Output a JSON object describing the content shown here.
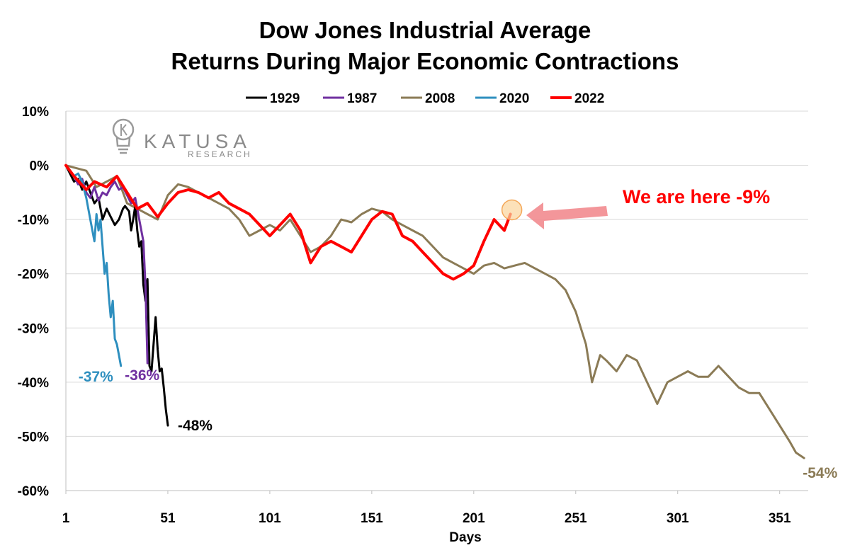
{
  "logo": {
    "name": "KATUSA",
    "sub": "RESEARCH"
  },
  "chart_data": {
    "type": "line",
    "title": [
      "Dow Jones Industrial Average",
      "Returns During Major Economic Contractions"
    ],
    "xlabel": "Days",
    "ylabel": "",
    "xlim": [
      1,
      365
    ],
    "ylim": [
      -60,
      10
    ],
    "x_ticks": [
      1,
      51,
      101,
      151,
      201,
      251,
      301,
      351
    ],
    "y_ticks": [
      10,
      0,
      -10,
      -20,
      -30,
      -40,
      -50,
      -60
    ],
    "y_tick_labels": [
      "10%",
      "0%",
      "-10%",
      "-20%",
      "-30%",
      "-40%",
      "-50%",
      "-60%"
    ],
    "grid": "horizontal",
    "legend_position": "top",
    "series": [
      {
        "name": "1929",
        "color": "#000000",
        "points": [
          [
            1,
            0
          ],
          [
            3,
            -1.5
          ],
          [
            5,
            -3
          ],
          [
            7,
            -2.5
          ],
          [
            9,
            -4.5
          ],
          [
            11,
            -3
          ],
          [
            13,
            -5
          ],
          [
            15,
            -7
          ],
          [
            17,
            -6
          ],
          [
            19,
            -10
          ],
          [
            21,
            -8
          ],
          [
            23,
            -9.5
          ],
          [
            25,
            -11
          ],
          [
            27,
            -10
          ],
          [
            29,
            -8
          ],
          [
            30,
            -7.5
          ],
          [
            32,
            -8.5
          ],
          [
            33,
            -12
          ],
          [
            34,
            -10
          ],
          [
            35,
            -7.5
          ],
          [
            36,
            -12
          ],
          [
            37,
            -15
          ],
          [
            38,
            -14
          ],
          [
            39,
            -22
          ],
          [
            40,
            -25
          ],
          [
            41,
            -21
          ],
          [
            42,
            -37
          ],
          [
            43,
            -38
          ],
          [
            44,
            -33
          ],
          [
            45,
            -28
          ],
          [
            46,
            -34
          ],
          [
            47,
            -38
          ],
          [
            48,
            -37.5
          ],
          [
            49,
            -41
          ],
          [
            50,
            -45
          ],
          [
            51,
            -48
          ]
        ],
        "end_label": "-48%"
      },
      {
        "name": "1987",
        "color": "#7030a0",
        "points": [
          [
            1,
            0
          ],
          [
            3,
            -1
          ],
          [
            5,
            -2
          ],
          [
            7,
            -3.5
          ],
          [
            9,
            -2.5
          ],
          [
            11,
            -5
          ],
          [
            13,
            -6
          ],
          [
            15,
            -4
          ],
          [
            17,
            -6.5
          ],
          [
            19,
            -5
          ],
          [
            21,
            -5.5
          ],
          [
            23,
            -4
          ],
          [
            25,
            -3
          ],
          [
            27,
            -4.5
          ],
          [
            29,
            -4
          ],
          [
            31,
            -5.5
          ],
          [
            33,
            -7
          ],
          [
            35,
            -6
          ],
          [
            36,
            -8
          ],
          [
            37,
            -10
          ],
          [
            38,
            -12
          ],
          [
            39,
            -14
          ],
          [
            40,
            -22
          ],
          [
            41,
            -36.5
          ]
        ],
        "end_label": "-36%"
      },
      {
        "name": "2008",
        "color": "#8b7b56",
        "points": [
          [
            1,
            0
          ],
          [
            6,
            -0.5
          ],
          [
            11,
            -1
          ],
          [
            16,
            -4
          ],
          [
            21,
            -3
          ],
          [
            26,
            -2
          ],
          [
            31,
            -7
          ],
          [
            36,
            -8
          ],
          [
            41,
            -9
          ],
          [
            46,
            -10
          ],
          [
            51,
            -5.5
          ],
          [
            56,
            -3.5
          ],
          [
            61,
            -4
          ],
          [
            66,
            -5
          ],
          [
            71,
            -6
          ],
          [
            76,
            -7
          ],
          [
            81,
            -8
          ],
          [
            86,
            -10
          ],
          [
            91,
            -13
          ],
          [
            96,
            -12
          ],
          [
            101,
            -11
          ],
          [
            106,
            -12
          ],
          [
            111,
            -10
          ],
          [
            116,
            -13
          ],
          [
            121,
            -16
          ],
          [
            126,
            -15
          ],
          [
            131,
            -13
          ],
          [
            136,
            -10
          ],
          [
            141,
            -10.5
          ],
          [
            146,
            -9
          ],
          [
            151,
            -8
          ],
          [
            156,
            -8.5
          ],
          [
            161,
            -10
          ],
          [
            166,
            -11
          ],
          [
            171,
            -12
          ],
          [
            176,
            -13
          ],
          [
            181,
            -15
          ],
          [
            186,
            -17
          ],
          [
            191,
            -18
          ],
          [
            196,
            -19
          ],
          [
            201,
            -20
          ],
          [
            206,
            -18.5
          ],
          [
            211,
            -18
          ],
          [
            216,
            -19
          ],
          [
            221,
            -18.5
          ],
          [
            226,
            -18
          ],
          [
            231,
            -19
          ],
          [
            236,
            -20
          ],
          [
            241,
            -21
          ],
          [
            246,
            -23
          ],
          [
            251,
            -27
          ],
          [
            256,
            -33
          ],
          [
            259,
            -40
          ],
          [
            263,
            -35
          ],
          [
            266,
            -36
          ],
          [
            271,
            -38
          ],
          [
            276,
            -35
          ],
          [
            281,
            -36
          ],
          [
            286,
            -40
          ],
          [
            291,
            -44
          ],
          [
            296,
            -40
          ],
          [
            301,
            -39
          ],
          [
            306,
            -38
          ],
          [
            311,
            -39
          ],
          [
            316,
            -39
          ],
          [
            321,
            -37
          ],
          [
            326,
            -39
          ],
          [
            331,
            -41
          ],
          [
            336,
            -42
          ],
          [
            341,
            -42
          ],
          [
            346,
            -45
          ],
          [
            351,
            -48
          ],
          [
            356,
            -51
          ],
          [
            359,
            -53
          ],
          [
            363,
            -54
          ]
        ],
        "end_label": "-54%"
      },
      {
        "name": "2020",
        "color": "#2e8fbf",
        "points": [
          [
            1,
            0
          ],
          [
            3,
            -1
          ],
          [
            5,
            -2
          ],
          [
            7,
            -1.5
          ],
          [
            9,
            -3
          ],
          [
            11,
            -6
          ],
          [
            13,
            -10
          ],
          [
            15,
            -14
          ],
          [
            16,
            -9
          ],
          [
            17,
            -12
          ],
          [
            18,
            -10
          ],
          [
            19,
            -15
          ],
          [
            20,
            -20
          ],
          [
            21,
            -18
          ],
          [
            22,
            -24
          ],
          [
            23,
            -28
          ],
          [
            24,
            -25
          ],
          [
            25,
            -32
          ],
          [
            26,
            -33
          ],
          [
            27,
            -35
          ],
          [
            28,
            -37
          ]
        ],
        "end_label": "-37%"
      },
      {
        "name": "2022",
        "color": "#ff0000",
        "points": [
          [
            1,
            0
          ],
          [
            5,
            -2
          ],
          [
            11,
            -4.5
          ],
          [
            15,
            -3
          ],
          [
            21,
            -4
          ],
          [
            26,
            -2
          ],
          [
            31,
            -5
          ],
          [
            36,
            -8
          ],
          [
            41,
            -7
          ],
          [
            46,
            -9.5
          ],
          [
            51,
            -7
          ],
          [
            56,
            -5
          ],
          [
            61,
            -4.5
          ],
          [
            66,
            -5
          ],
          [
            71,
            -6
          ],
          [
            76,
            -5
          ],
          [
            81,
            -7
          ],
          [
            86,
            -8
          ],
          [
            91,
            -9
          ],
          [
            96,
            -11
          ],
          [
            101,
            -13
          ],
          [
            106,
            -11
          ],
          [
            111,
            -9
          ],
          [
            116,
            -12
          ],
          [
            121,
            -18
          ],
          [
            126,
            -15
          ],
          [
            131,
            -14
          ],
          [
            136,
            -15
          ],
          [
            141,
            -16
          ],
          [
            146,
            -13
          ],
          [
            151,
            -10
          ],
          [
            156,
            -8.5
          ],
          [
            161,
            -9
          ],
          [
            166,
            -13
          ],
          [
            171,
            -14
          ],
          [
            176,
            -16
          ],
          [
            181,
            -18
          ],
          [
            186,
            -20
          ],
          [
            191,
            -21
          ],
          [
            196,
            -20
          ],
          [
            201,
            -18.5
          ],
          [
            206,
            -14
          ],
          [
            211,
            -10
          ],
          [
            216,
            -12
          ],
          [
            219,
            -9
          ]
        ],
        "end_label": ""
      }
    ],
    "annotation": {
      "text": "We are here -9%",
      "x": 219,
      "y": -9,
      "color": "#ff0000"
    }
  }
}
